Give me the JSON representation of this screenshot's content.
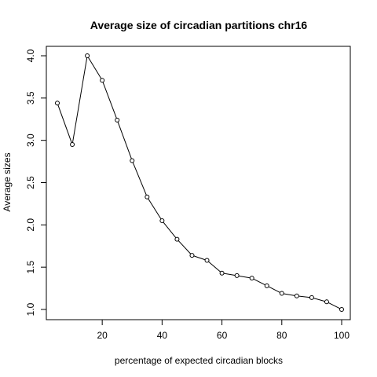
{
  "chart_data": {
    "type": "line",
    "title": "Average size of circadian partitions chr16",
    "xlabel": "percentage of expected circadian blocks",
    "ylabel": "Average sizes",
    "x": [
      5,
      10,
      15,
      20,
      25,
      30,
      35,
      40,
      45,
      50,
      55,
      60,
      65,
      70,
      75,
      80,
      85,
      90,
      95,
      100
    ],
    "series": [
      {
        "values": [
          3.44,
          2.95,
          4.0,
          3.71,
          3.24,
          2.76,
          2.33,
          2.05,
          1.83,
          1.64,
          1.58,
          1.43,
          1.4,
          1.37,
          1.28,
          1.19,
          1.16,
          1.14,
          1.09,
          1.0
        ]
      }
    ],
    "xlim": [
      5,
      100
    ],
    "ylim": [
      1.0,
      4.0
    ],
    "x_ticks": [
      20,
      40,
      60,
      80,
      100
    ],
    "y_ticks": [
      1.0,
      1.5,
      2.0,
      2.5,
      3.0,
      3.5,
      4.0
    ],
    "x_tick_labels": [
      "20",
      "40",
      "60",
      "80",
      "100"
    ],
    "y_tick_labels": [
      "1.0",
      "1.5",
      "2.0",
      "2.5",
      "3.0",
      "3.5",
      "4.0"
    ],
    "markers": "open-circle",
    "grid": false,
    "line_color": "#000000"
  }
}
